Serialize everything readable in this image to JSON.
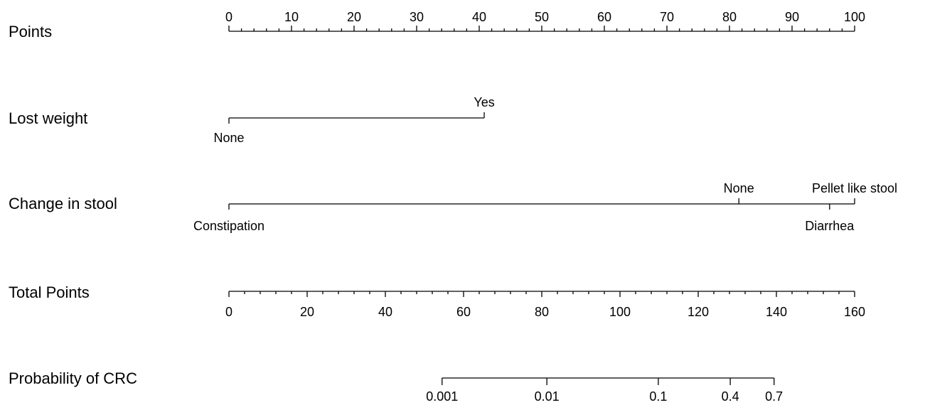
{
  "colors": {
    "foreground": "#000000",
    "background": "#ffffff"
  },
  "chart_data": {
    "type": "nomogram",
    "title": "",
    "rows": [
      {
        "id": "points",
        "label": "Points",
        "kind": "scale",
        "range": [
          0,
          100
        ],
        "major_ticks": [
          0,
          10,
          20,
          30,
          40,
          50,
          60,
          70,
          80,
          90,
          100
        ],
        "major_tick_labels": [
          "0",
          "10",
          "20",
          "30",
          "40",
          "50",
          "60",
          "70",
          "80",
          "90",
          "100"
        ],
        "minor_tick_step": 2,
        "tick_label_side": "top"
      },
      {
        "id": "lost_weight",
        "label": "Lost weight",
        "kind": "categorical",
        "levels": [
          {
            "name": "None",
            "points": 0,
            "label_side": "bottom"
          },
          {
            "name": "Yes",
            "points": 40.8,
            "label_side": "top"
          }
        ]
      },
      {
        "id": "change_in_stool",
        "label": "Change in stool",
        "kind": "categorical",
        "levels": [
          {
            "name": "Constipation",
            "points": 0,
            "label_side": "bottom"
          },
          {
            "name": "None",
            "points": 81.5,
            "label_side": "top"
          },
          {
            "name": "Diarrhea",
            "points": 96,
            "label_side": "bottom"
          },
          {
            "name": "Pellet like stool",
            "points": 100,
            "label_side": "top"
          }
        ]
      },
      {
        "id": "total_points",
        "label": "Total Points",
        "kind": "scale",
        "range": [
          0,
          160
        ],
        "major_ticks": [
          0,
          20,
          40,
          60,
          80,
          100,
          120,
          140,
          160
        ],
        "major_tick_labels": [
          "0",
          "20",
          "40",
          "60",
          "80",
          "100",
          "120",
          "140",
          "160"
        ],
        "minor_tick_step": 4,
        "tick_label_side": "bottom"
      },
      {
        "id": "probability",
        "label": "Probability of CRC",
        "kind": "mapped_scale",
        "ticks": [
          {
            "label": "0.001",
            "total_points": 54.5
          },
          {
            "label": "0.01",
            "total_points": 81.3
          },
          {
            "label": "0.1",
            "total_points": 109.8
          },
          {
            "label": "0.4",
            "total_points": 128.2
          },
          {
            "label": "0.7",
            "total_points": 139.4
          }
        ],
        "tick_label_side": "bottom"
      }
    ]
  }
}
